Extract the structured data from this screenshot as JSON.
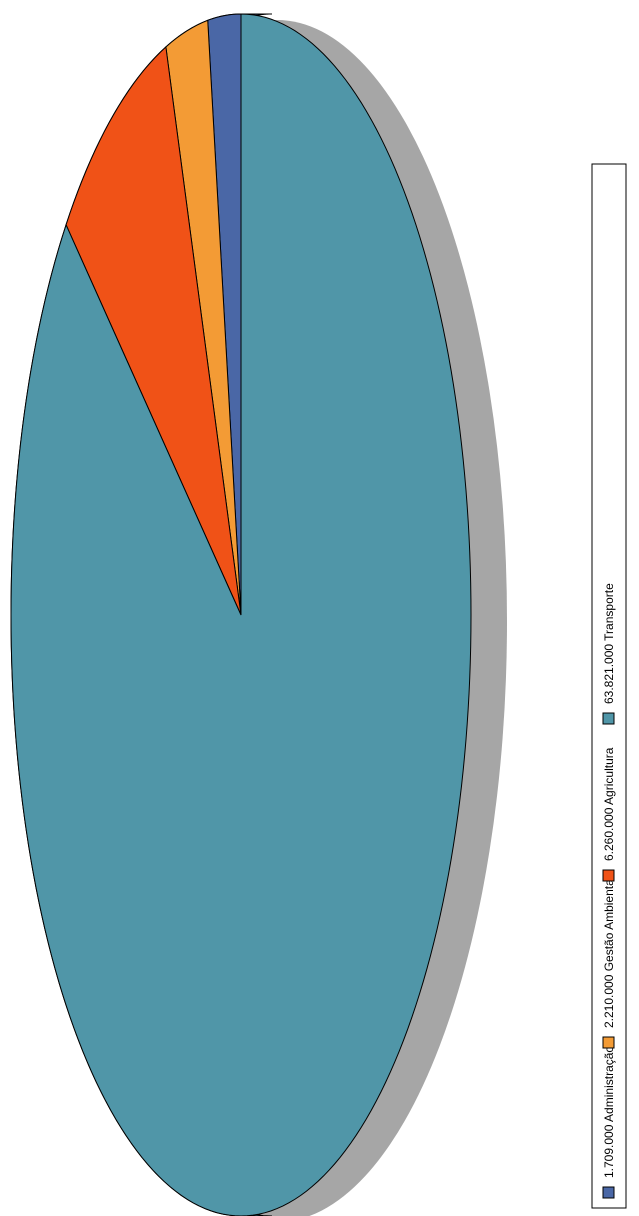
{
  "chart_data": {
    "type": "pie",
    "style": "3d-rotated",
    "series": [
      {
        "label": "1.709.000 Administração",
        "value": 1709000,
        "color": "#4a67a6",
        "side_color": "#34497a"
      },
      {
        "label": "2.210.000 Gestão Ambiental",
        "value": 2210000,
        "color": "#f39b35",
        "side_color": "#b87425"
      },
      {
        "label": "6.260.000 Agricultura",
        "value": 6260000,
        "color": "#f05217",
        "side_color": "#a83a10"
      },
      {
        "label": "63.821.000 Transporte",
        "value": 63821000,
        "color": "#5096a8",
        "side_color": "#2f7485"
      }
    ],
    "legend": {
      "position": "right",
      "orientation": "vertical-rotated",
      "items": [
        {
          "label": "1.709.000 Administração",
          "color": "#4a67a6"
        },
        {
          "label": "2.210.000 Gestão Ambiental",
          "color": "#f39b35"
        },
        {
          "label": "6.260.000 Agricultura",
          "color": "#f05217"
        },
        {
          "label": "63.821.000 Transporte",
          "color": "#5096a8"
        }
      ]
    }
  }
}
